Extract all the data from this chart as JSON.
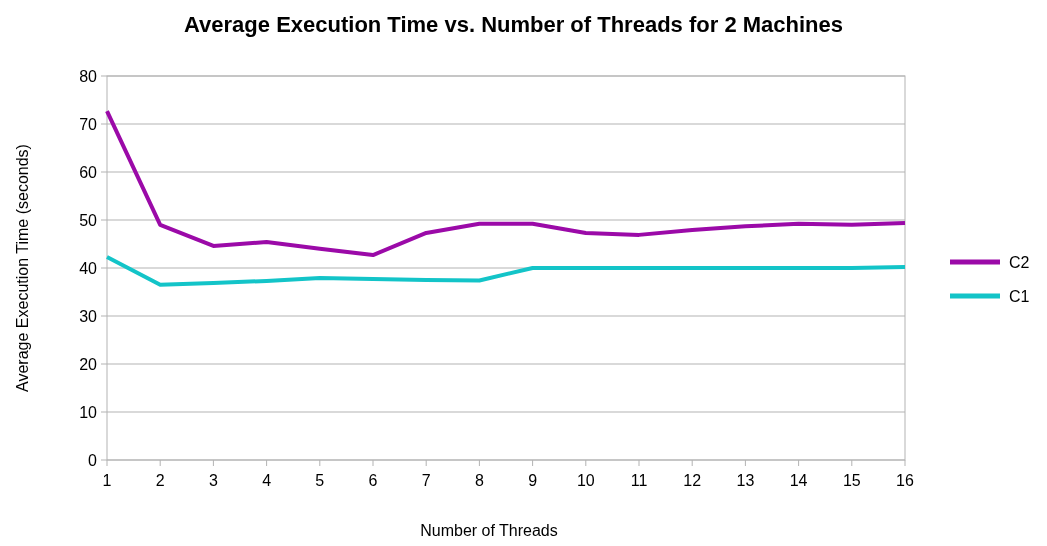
{
  "chart_data": {
    "type": "line",
    "title": "Average Execution Time vs. Number of Threads for 2 Machines",
    "xlabel": "Number of Threads",
    "ylabel": "Average Execution Time (seconds)",
    "x": [
      1,
      2,
      3,
      4,
      5,
      6,
      7,
      8,
      9,
      10,
      11,
      12,
      13,
      14,
      15,
      16
    ],
    "xlim": [
      1,
      16
    ],
    "xticks": [
      1,
      2,
      3,
      4,
      5,
      6,
      7,
      8,
      9,
      10,
      11,
      12,
      13,
      14,
      15,
      16
    ],
    "ylim": [
      0,
      80
    ],
    "yticks": [
      0,
      10,
      20,
      30,
      40,
      50,
      60,
      70,
      80
    ],
    "grid": "y",
    "legend": "right",
    "marker": "none",
    "line_style": "solid",
    "series": [
      {
        "name": "C2",
        "color": "#9b0aa8",
        "values": [
          72.7,
          49,
          44.6,
          45.4,
          44,
          42.7,
          47.3,
          49.2,
          49.2,
          47.3,
          46.9,
          47.9,
          48.7,
          49.2,
          49,
          49.4
        ]
      },
      {
        "name": "C1",
        "color": "#13c4c8",
        "values": [
          42.3,
          36.5,
          36.9,
          37.3,
          37.9,
          37.7,
          37.5,
          37.4,
          40,
          40,
          40,
          40,
          40,
          40,
          40,
          40.2
        ]
      }
    ]
  }
}
